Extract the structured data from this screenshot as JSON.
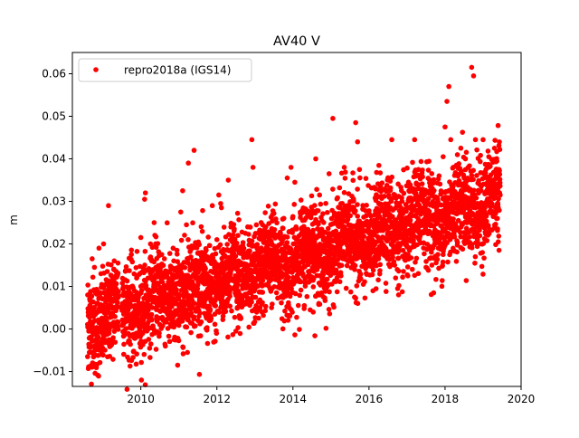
{
  "chart_data": {
    "type": "scatter",
    "title": "AV40 V",
    "xlabel": "",
    "ylabel": "m",
    "xlim": [
      2008.2,
      2020.0
    ],
    "ylim": [
      -0.0135,
      0.065
    ],
    "x_ticks": [
      2010,
      2012,
      2014,
      2016,
      2018,
      2020
    ],
    "x_tick_labels": [
      "2010",
      "2012",
      "2014",
      "2016",
      "2018",
      "2020"
    ],
    "y_ticks": [
      -0.01,
      0.0,
      0.01,
      0.02,
      0.03,
      0.04,
      0.05,
      0.06
    ],
    "y_tick_labels": [
      "−0.01",
      "0.00",
      "0.01",
      "0.02",
      "0.03",
      "0.04",
      "0.05",
      "0.06"
    ],
    "grid": false,
    "legend": {
      "position": "top-left"
    },
    "series": [
      {
        "name": "repro2018a (IGS14)",
        "color": "#ff0000",
        "marker": "circle",
        "x_range": [
          2008.6,
          2019.45
        ],
        "trend": {
          "start": [
            2008.6,
            0.002
          ],
          "end": [
            2019.45,
            0.031
          ]
        },
        "spread_1sigma": 0.0055,
        "points": [
          [
            2008.6,
            -0.0065
          ],
          [
            2008.62,
            -0.0093
          ],
          [
            2008.65,
            -0.0088
          ],
          [
            2008.68,
            -0.004
          ],
          [
            2008.7,
            0.001
          ],
          [
            2008.72,
            0.0165
          ],
          [
            2008.78,
            0.0145
          ],
          [
            2008.85,
            0.009
          ],
          [
            2008.9,
            0.019
          ],
          [
            2008.95,
            0.013
          ],
          [
            2009.02,
            0.02
          ],
          [
            2009.1,
            0.0115
          ],
          [
            2009.15,
            0.029
          ],
          [
            2009.2,
            0.008
          ],
          [
            2009.3,
            0.016
          ],
          [
            2009.4,
            0.0155
          ],
          [
            2009.55,
            0.0035
          ],
          [
            2009.7,
            0.0025
          ],
          [
            2009.75,
            0.0175
          ],
          [
            2009.85,
            0.0055
          ],
          [
            2009.9,
            0.0125
          ],
          [
            2009.95,
            0.0005
          ],
          [
            2010.0,
            0.0215
          ],
          [
            2010.1,
            0.0305
          ],
          [
            2010.12,
            0.032
          ],
          [
            2010.2,
            0.0
          ],
          [
            2010.3,
            0.0135
          ],
          [
            2010.35,
            0.025
          ],
          [
            2010.45,
            0.0055
          ],
          [
            2010.55,
            0.0175
          ],
          [
            2010.62,
            0.0165
          ],
          [
            2010.75,
            0.0095
          ],
          [
            2010.85,
            0.019
          ],
          [
            2010.95,
            0.0185
          ],
          [
            2011.05,
            0.0275
          ],
          [
            2011.1,
            0.0325
          ],
          [
            2011.2,
            0.0245
          ],
          [
            2011.25,
            0.039
          ],
          [
            2011.3,
            0.0145
          ],
          [
            2011.4,
            0.042
          ],
          [
            2011.5,
            0.002
          ],
          [
            2011.6,
            0.018
          ],
          [
            2011.7,
            0.017
          ],
          [
            2011.8,
            0.016
          ],
          [
            2011.88,
            0.029
          ],
          [
            2012.0,
            0.021
          ],
          [
            2012.05,
            0.0315
          ],
          [
            2012.1,
            0.0295
          ],
          [
            2012.12,
            0.0285
          ],
          [
            2012.2,
            0.0055
          ],
          [
            2012.3,
            0.035
          ],
          [
            2012.4,
            0.0205
          ],
          [
            2012.5,
            -0.0005
          ],
          [
            2012.6,
            0.0025
          ],
          [
            2012.75,
            0.0225
          ],
          [
            2012.92,
            0.0445
          ],
          [
            2012.95,
            0.038
          ],
          [
            2013.05,
            0.0195
          ],
          [
            2013.2,
            0.0245
          ],
          [
            2013.3,
            0.018
          ],
          [
            2013.45,
            0.0095
          ],
          [
            2013.6,
            0.0145
          ],
          [
            2013.75,
            0.0175
          ],
          [
            2013.85,
            0.0355
          ],
          [
            2013.95,
            0.038
          ],
          [
            2014.05,
            0.0345
          ],
          [
            2014.1,
            0.0235
          ],
          [
            2014.2,
            0.027
          ],
          [
            2014.3,
            0.0055
          ],
          [
            2014.4,
            0.0125
          ],
          [
            2014.5,
            0.0165
          ],
          [
            2014.6,
            0.04
          ],
          [
            2014.7,
            0.0315
          ],
          [
            2014.8,
            0.0115
          ],
          [
            2014.85,
            0.0185
          ],
          [
            2014.95,
            0.0365
          ],
          [
            2015.05,
            0.0495
          ],
          [
            2015.15,
            0.0205
          ],
          [
            2015.2,
            0.0245
          ],
          [
            2015.35,
            0.038
          ],
          [
            2015.45,
            0.0265
          ],
          [
            2015.6,
            0.0285
          ],
          [
            2015.65,
            0.0485
          ],
          [
            2015.7,
            0.044
          ],
          [
            2015.75,
            0.0375
          ],
          [
            2015.85,
            0.0105
          ],
          [
            2015.9,
            0.025
          ],
          [
            2016.0,
            0.0165
          ],
          [
            2016.1,
            0.0195
          ],
          [
            2016.25,
            0.0165
          ],
          [
            2016.3,
            0.0335
          ],
          [
            2016.45,
            0.0245
          ],
          [
            2016.5,
            0.0275
          ],
          [
            2016.6,
            0.0445
          ],
          [
            2016.7,
            0.012
          ],
          [
            2016.8,
            0.0195
          ],
          [
            2016.95,
            0.0225
          ],
          [
            2017.05,
            0.0325
          ],
          [
            2017.15,
            0.024
          ],
          [
            2017.2,
            0.0445
          ],
          [
            2017.3,
            0.0375
          ],
          [
            2017.4,
            0.0225
          ],
          [
            2017.5,
            0.0145
          ],
          [
            2017.62,
            0.034
          ],
          [
            2017.7,
            0.0085
          ],
          [
            2017.8,
            0.0305
          ],
          [
            2017.95,
            0.0405
          ],
          [
            2018.0,
            0.0475
          ],
          [
            2018.05,
            0.0535
          ],
          [
            2018.1,
            0.057
          ],
          [
            2018.15,
            0.0445
          ],
          [
            2018.2,
            0.033
          ],
          [
            2018.3,
            0.0385
          ],
          [
            2018.35,
            0.0255
          ],
          [
            2018.5,
            0.0205
          ],
          [
            2018.6,
            0.0295
          ],
          [
            2018.7,
            0.0615
          ],
          [
            2018.75,
            0.0595
          ],
          [
            2018.8,
            0.0445
          ],
          [
            2018.95,
            0.0325
          ],
          [
            2019.0,
            0.0445
          ],
          [
            2019.05,
            0.0285
          ],
          [
            2019.1,
            0.0385
          ],
          [
            2019.15,
            0.0405
          ],
          [
            2019.2,
            0.0345
          ],
          [
            2019.3,
            0.0425
          ],
          [
            2019.35,
            0.0285
          ],
          [
            2019.4,
            0.0205
          ],
          [
            2019.42,
            0.0185
          ],
          [
            2019.45,
            0.0315
          ]
        ]
      }
    ]
  }
}
